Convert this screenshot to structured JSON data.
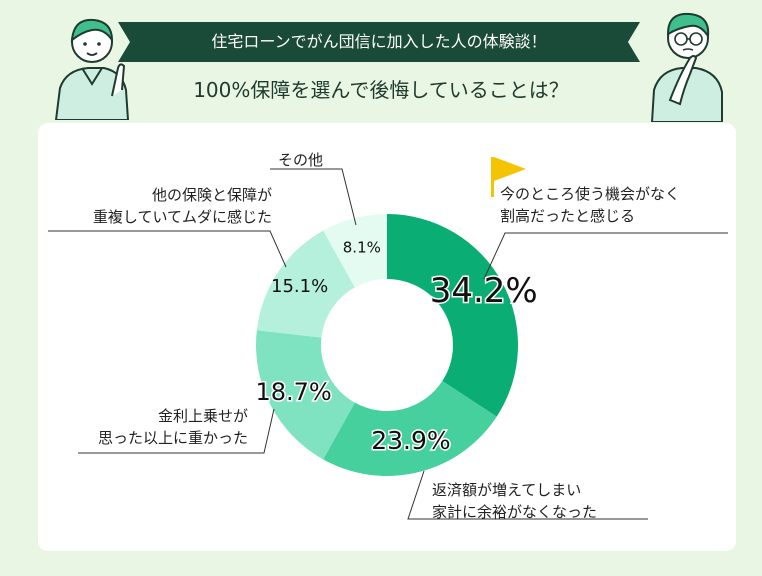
{
  "header": {
    "banner_title": "住宅ローンでがん団信に加入した人の体験談！",
    "subtitle": "100%保障を選んで後悔していることは？"
  },
  "colors": {
    "background": "#e9f6e4",
    "banner": "#1a4a38",
    "flag": "#f5c400"
  },
  "chart_data": {
    "type": "pie",
    "variant": "donut",
    "categories": [
      "今のところ使う機会がなく割高だったと感じる",
      "返済額が増えてしまい家計に余裕がなくなった",
      "金利上乗せが思った以上に重かった",
      "他の保険と保障が重複していてムダに感じた",
      "その他"
    ],
    "values": [
      34.2,
      23.9,
      18.7,
      15.1,
      8.1
    ],
    "value_labels": [
      "34.2%",
      "23.9%",
      "18.7%",
      "15.1%",
      "8.1%"
    ],
    "colors": [
      "#0aae74",
      "#45d09d",
      "#7fe3c1",
      "#b5f0dc",
      "#e3fbf1"
    ],
    "labels": {
      "s1": [
        "今のところ使う機会がなく",
        "割高だったと感じる"
      ],
      "s2": [
        "返済額が増えてしまい",
        "家計に余裕がなくなった"
      ],
      "s3": [
        "金利上乗せが",
        "思った以上に重かった"
      ],
      "s4": [
        "他の保険と保障が",
        "重複していてムダに感じた"
      ],
      "s5": [
        "その他"
      ]
    }
  }
}
